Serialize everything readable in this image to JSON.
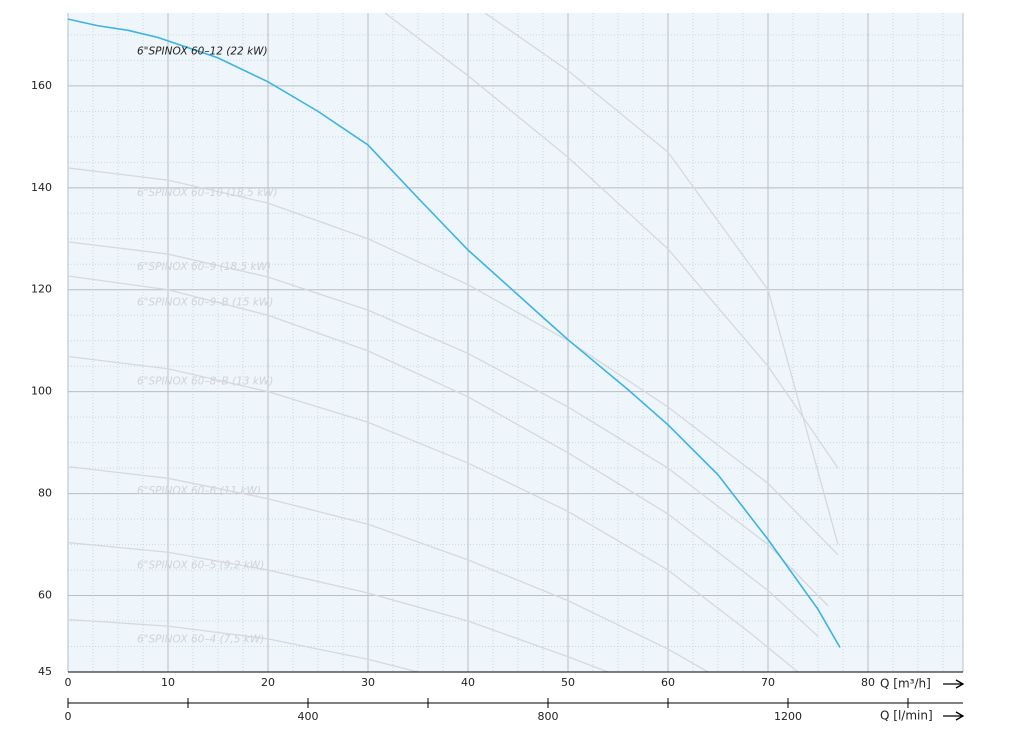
{
  "chart_data": {
    "type": "line",
    "x_label": "Q [m³/h]",
    "x2_label": "Q [l/min]",
    "xlim": [
      0,
      89.5
    ],
    "xticks": [
      0,
      10,
      20,
      30,
      40,
      50,
      60,
      70,
      80
    ],
    "x2lim": [
      0,
      1491.7
    ],
    "x2ticks": [
      0,
      400,
      800,
      1200
    ],
    "ylim": [
      45,
      174.3
    ],
    "yticks": [
      45,
      60,
      80,
      100,
      120,
      140,
      160
    ],
    "grid": true,
    "series": [
      {
        "name": "6\"SPINOX 60–12 (22 kW)",
        "color": "#3bb4e5",
        "x": [
          0,
          3,
          6,
          9,
          12,
          15,
          20,
          25,
          30,
          35,
          40,
          48,
          50,
          56,
          60,
          65,
          70,
          75,
          77.2
        ],
        "values": [
          173.1,
          171.8,
          170.9,
          169.5,
          167.5,
          165.5,
          160.8,
          155,
          148.4,
          138,
          127.8,
          113.7,
          110.2,
          100.4,
          93.5,
          83.7,
          71,
          57.3,
          49.8
        ]
      },
      {
        "name": "6\"SPINOX 60–10 (18,5 kW)",
        "color": "#d6d9dc",
        "x": [
          0,
          10,
          20,
          30,
          40,
          50,
          60,
          70,
          77
        ],
        "values": [
          143.9,
          141.5,
          137,
          130,
          121,
          110,
          97,
          82,
          68
        ]
      },
      {
        "name": "6\"SPINOX 60–9 (18,5 kW)",
        "color": "#d6d9dc",
        "x": [
          0,
          10,
          20,
          30,
          40,
          50,
          60,
          70,
          76
        ],
        "values": [
          129.4,
          127,
          122.5,
          116,
          107.5,
          97,
          85,
          70,
          58
        ]
      },
      {
        "name": "6\"SPINOX 60–9–B (15 kW)",
        "color": "#d6d9dc",
        "x": [
          0,
          10,
          20,
          30,
          40,
          50,
          60,
          70,
          75
        ],
        "values": [
          122.7,
          120,
          115,
          108,
          99,
          88,
          76,
          61,
          52
        ]
      },
      {
        "name": "6\"SPINOX 60–8–B (13 kW)",
        "color": "#d6d9dc",
        "x": [
          0,
          10,
          20,
          30,
          40,
          50,
          60,
          68,
          73
        ],
        "values": [
          106.9,
          104.5,
          100,
          94,
          86,
          76.5,
          65,
          53,
          45
        ]
      },
      {
        "name": "6\"SPINOX 60–6 (11 kW)",
        "color": "#d6d9dc",
        "x": [
          0,
          10,
          20,
          30,
          40,
          50,
          60,
          64
        ],
        "values": [
          85.3,
          83,
          79,
          74,
          67,
          59,
          49.5,
          45
        ]
      },
      {
        "name": "6\"SPINOX 60–5 (9,2 kW)",
        "color": "#d6d9dc",
        "x": [
          0,
          10,
          20,
          30,
          40,
          50,
          54
        ],
        "values": [
          70.4,
          68.5,
          65,
          60.5,
          55,
          48,
          45
        ]
      },
      {
        "name": "6\"SPINOX 60–4 (7,5 kW)",
        "color": "#d6d9dc",
        "x": [
          0,
          10,
          20,
          30,
          35
        ],
        "values": [
          55.3,
          54,
          51.5,
          47.5,
          45
        ]
      },
      {
        "color": "#d6d9dc",
        "x": [
          31.7,
          40,
          50,
          60,
          70,
          77
        ],
        "values": [
          174.3,
          162,
          146,
          128,
          105,
          85
        ]
      },
      {
        "color": "#d6d9dc",
        "x": [
          41.7,
          50,
          60,
          70,
          77
        ],
        "values": [
          174.3,
          163,
          147,
          120,
          70
        ]
      }
    ]
  }
}
